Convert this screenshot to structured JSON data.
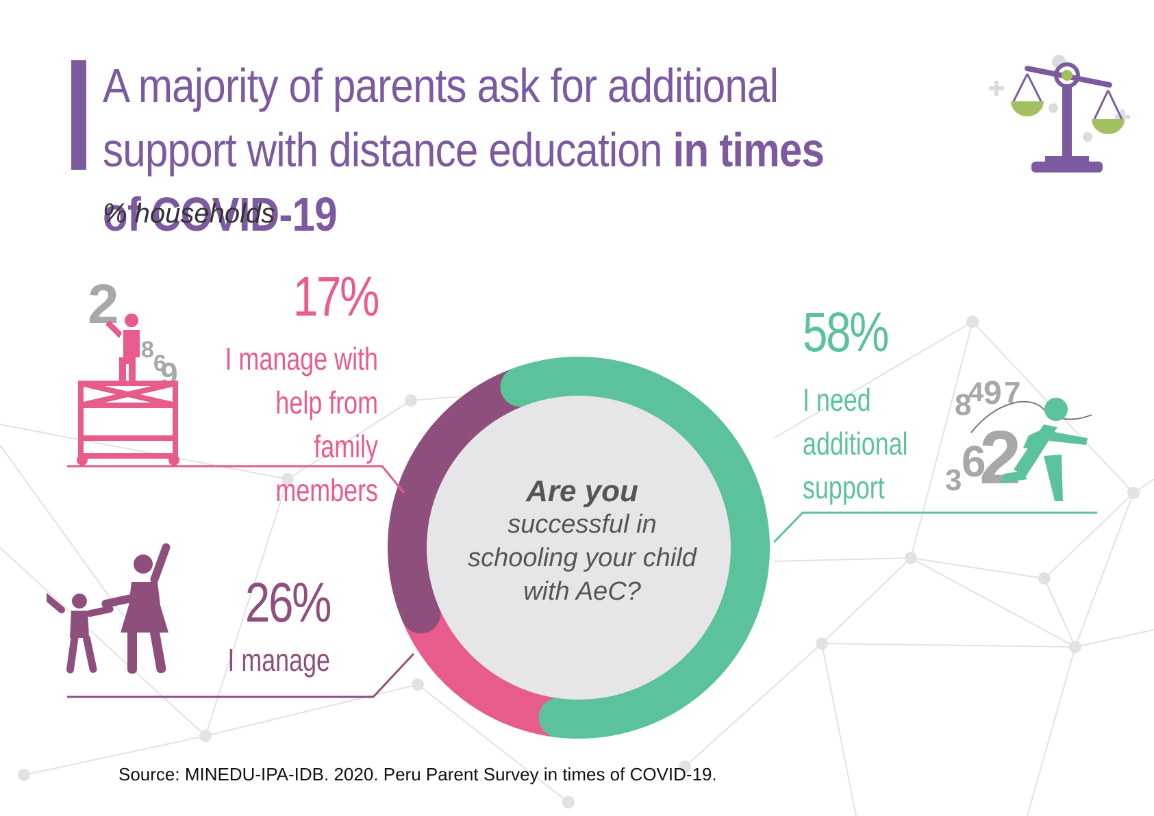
{
  "header": {
    "title_part1": "A majority of parents ask for additional support with distance education ",
    "title_bold": "in times of COVID-19",
    "subtitle": "% households"
  },
  "center": {
    "line1": "Are you",
    "line2": "successful in",
    "line3": "schooling your child",
    "line4": "with AeC?"
  },
  "source": "Source: MINEDU-IPA-IDB. 2020. Peru Parent Survey in times of COVID-19.",
  "colors": {
    "pink": "#e85b8d",
    "purple": "#8e4f7d",
    "green": "#5cc29c",
    "title_purple": "#7d5aa0",
    "gray": "#a8a8a8",
    "center_fill": "#e6e6e8"
  },
  "icons": [
    "scale-icon",
    "scaffold-worker-icon",
    "parent-child-icon",
    "running-person-icon"
  ],
  "chart_data": {
    "type": "pie",
    "title": "A majority of parents ask for additional support with distance education in times of COVID-19",
    "unit": "% households",
    "categories": [
      "I need additional support",
      "I manage with help from family members",
      "I manage"
    ],
    "values": [
      58,
      17,
      26
    ],
    "value_labels": [
      "58%",
      "17%",
      "26%"
    ],
    "colors": [
      "#5cc29c",
      "#e85b8d",
      "#8e4f7d"
    ],
    "center_label": "Are you successful in schooling your child with AeC?"
  }
}
